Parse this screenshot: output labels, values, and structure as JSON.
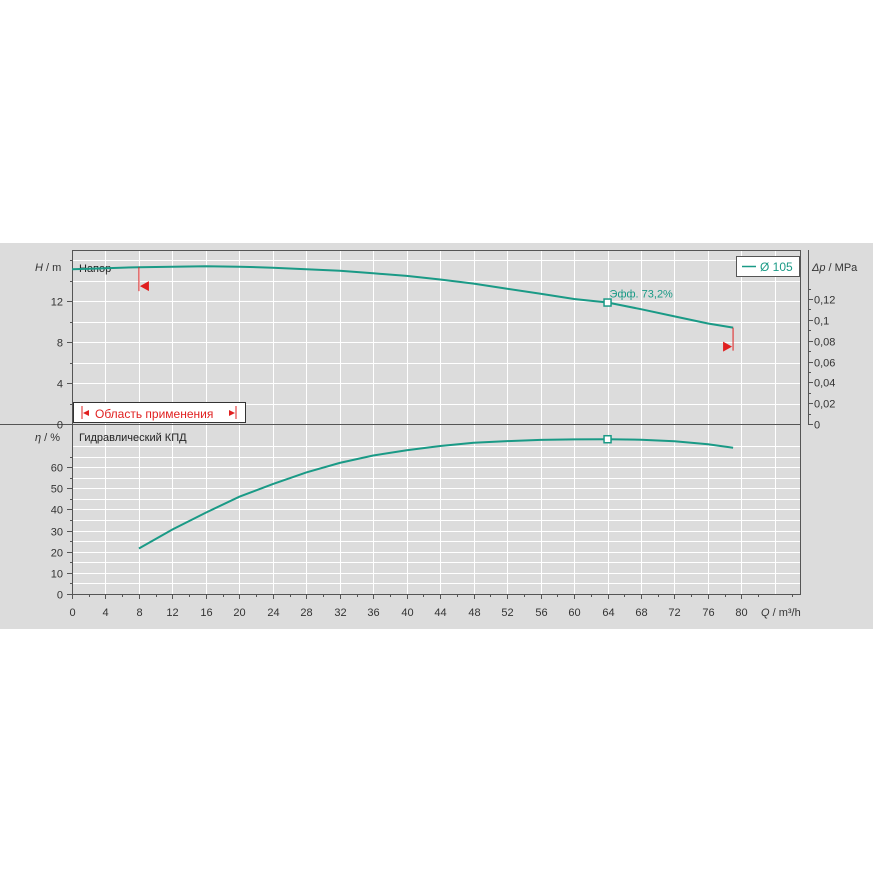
{
  "chart_data": [
    {
      "type": "line",
      "panel": "head",
      "title": "Напор",
      "ylabel_sym": "H",
      "ylabel_unit": "/ m",
      "y2label_sym": "Δp",
      "y2label_unit": "/ MPa",
      "xlim": [
        0,
        87
      ],
      "ylim": [
        0,
        18
      ],
      "yticks": [
        "0",
        "4",
        "8",
        "12"
      ],
      "y2ticks": [
        "0",
        "0,02",
        "0,04",
        "0,06",
        "0,08",
        "0,1",
        "0,12"
      ],
      "grid": true,
      "legend": {
        "label": "Ø 105",
        "position": "top-right"
      },
      "series": [
        {
          "name": "Ø 105",
          "color": "#1a9a86",
          "x": [
            0,
            4,
            8,
            12,
            16,
            20,
            24,
            28,
            32,
            36,
            40,
            44,
            48,
            52,
            56,
            60,
            64,
            68,
            72,
            76,
            79
          ],
          "y": [
            15.1,
            15.2,
            15.3,
            15.35,
            15.4,
            15.35,
            15.25,
            15.1,
            14.95,
            14.7,
            14.45,
            14.1,
            13.7,
            13.2,
            12.7,
            12.2,
            11.85,
            11.2,
            10.5,
            9.8,
            9.4
          ]
        }
      ],
      "marker": {
        "x": 64,
        "y": 11.85,
        "label": "Эфф.  73,2%"
      },
      "application_range": {
        "label": "Область применения",
        "x_min": 8,
        "x_max": 79,
        "y_at_min": 15.3,
        "y_at_max": 9.4
      }
    },
    {
      "type": "line",
      "panel": "efficiency",
      "title": "Гидравлический КПД",
      "ylabel_sym": "η",
      "ylabel_unit": "/ %",
      "xlabel_sym": "Q",
      "xlabel_unit": "/ m³/h",
      "xlim": [
        0,
        87
      ],
      "ylim": [
        0,
        75
      ],
      "xticks": [
        "0",
        "4",
        "8",
        "12",
        "16",
        "20",
        "24",
        "28",
        "32",
        "36",
        "40",
        "44",
        "48",
        "52",
        "56",
        "60",
        "64",
        "68",
        "72",
        "76",
        "80"
      ],
      "yticks": [
        "0",
        "10",
        "20",
        "30",
        "40",
        "50",
        "60"
      ],
      "grid": true,
      "series": [
        {
          "name": "Ø 105",
          "color": "#1a9a86",
          "x": [
            8,
            12,
            16,
            20,
            24,
            28,
            32,
            36,
            40,
            44,
            48,
            52,
            56,
            60,
            64,
            68,
            72,
            76,
            79
          ],
          "y": [
            21.5,
            30.5,
            38.5,
            46,
            52,
            57.5,
            62,
            65.5,
            68,
            70,
            71.5,
            72.3,
            72.9,
            73.1,
            73.2,
            73.0,
            72.2,
            70.8,
            69.2
          ]
        }
      ],
      "marker": {
        "x": 64,
        "y": 73.2
      }
    }
  ]
}
